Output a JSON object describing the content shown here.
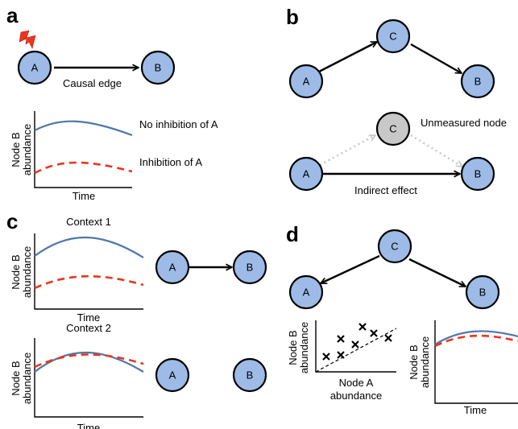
{
  "colors": {
    "node_fill": "#9dbbe6",
    "node_unmeasured_fill": "#c8c8c8",
    "curve_blue": "#4f77a8",
    "curve_red": "#e8371f",
    "lightning": "#e8371f"
  },
  "panels": {
    "a": {
      "letter": "a",
      "node_a": "A",
      "node_b": "B",
      "edge_label": "Causal edge",
      "legend_no_inhibition": "No inhibition of A",
      "legend_inhibition": "Inhibition of A",
      "ylabel_line1": "Node B",
      "ylabel_line2": "abundance",
      "xlabel": "Time",
      "icon": "lightning-icon"
    },
    "b": {
      "letter": "b",
      "node_a": "A",
      "node_b": "B",
      "node_c": "C",
      "unmeasured_label": "Unmeasured node",
      "indirect_label": "Indirect effect"
    },
    "c": {
      "letter": "c",
      "context1": "Context 1",
      "context2": "Context 2",
      "ylabel_line1": "Node B",
      "ylabel_line2": "abundance",
      "xlabel": "Time",
      "node_a": "A",
      "node_b": "B"
    },
    "d": {
      "letter": "d",
      "node_a": "A",
      "node_b": "B",
      "node_c": "C",
      "scatter_ylabel_line1": "Node B",
      "scatter_ylabel_line2": "abundance",
      "scatter_xlabel_line1": "Node A",
      "scatter_xlabel_line2": "abundance",
      "time_ylabel_line1": "Node B",
      "time_ylabel_line2": "abundance",
      "time_xlabel": "Time"
    }
  }
}
